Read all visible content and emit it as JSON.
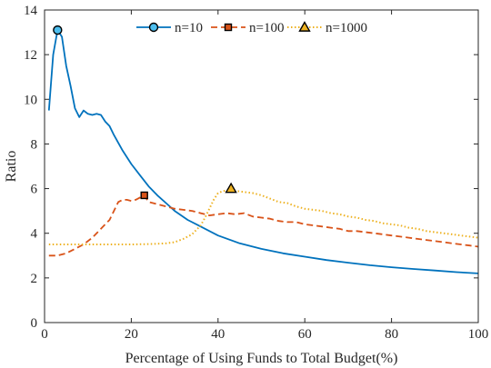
{
  "chart_data": {
    "type": "line",
    "title": "",
    "xlabel": "Percentage of Using Funds to Total Budget(%)",
    "ylabel": "Ratio",
    "xlim": [
      0,
      100
    ],
    "ylim": [
      0,
      14
    ],
    "xticks": [
      0,
      20,
      40,
      60,
      80,
      100
    ],
    "yticks": [
      0,
      2,
      4,
      6,
      8,
      10,
      12,
      14
    ],
    "legend_position": "top",
    "series": [
      {
        "name": "n=10",
        "color": "#0072BD",
        "line_style": "solid",
        "marker": "circle",
        "marker_fill": "#4DBEEE",
        "marker_at": [
          3,
          13.1
        ],
        "x": [
          1,
          2,
          3,
          4,
          5,
          6,
          7,
          8,
          9,
          10,
          11,
          12,
          13,
          14,
          15,
          16,
          18,
          20,
          22,
          24,
          26,
          28,
          30,
          33,
          36,
          40,
          45,
          50,
          55,
          60,
          65,
          70,
          75,
          80,
          85,
          90,
          95,
          100
        ],
        "y": [
          9.5,
          12.0,
          13.1,
          12.8,
          11.5,
          10.6,
          9.6,
          9.2,
          9.5,
          9.35,
          9.3,
          9.35,
          9.3,
          9.0,
          8.8,
          8.4,
          7.7,
          7.1,
          6.6,
          6.1,
          5.7,
          5.35,
          5.0,
          4.6,
          4.3,
          3.9,
          3.55,
          3.3,
          3.1,
          2.95,
          2.8,
          2.68,
          2.57,
          2.48,
          2.4,
          2.33,
          2.26,
          2.2
        ]
      },
      {
        "name": "n=100",
        "color": "#D95319",
        "line_style": "dashed",
        "marker": "square",
        "marker_fill": "#D95319",
        "marker_at": [
          23,
          5.7
        ],
        "x": [
          1,
          3,
          5,
          7,
          9,
          11,
          13,
          15,
          16,
          17,
          18,
          19,
          20,
          21,
          22,
          23,
          24,
          25,
          26,
          28,
          30,
          32,
          34,
          36,
          38,
          40,
          42,
          44,
          46,
          48,
          50,
          52,
          54,
          56,
          58,
          60,
          62,
          64,
          66,
          68,
          70,
          72,
          74,
          76,
          78,
          80,
          82,
          84,
          86,
          88,
          90,
          92,
          94,
          96,
          98,
          100
        ],
        "y": [
          3.0,
          3.0,
          3.1,
          3.3,
          3.5,
          3.8,
          4.2,
          4.6,
          5.0,
          5.4,
          5.5,
          5.5,
          5.45,
          5.5,
          5.6,
          5.7,
          5.4,
          5.35,
          5.3,
          5.2,
          5.1,
          5.05,
          5.0,
          4.9,
          4.8,
          4.85,
          4.9,
          4.85,
          4.9,
          4.75,
          4.7,
          4.65,
          4.55,
          4.5,
          4.5,
          4.4,
          4.35,
          4.3,
          4.25,
          4.2,
          4.1,
          4.1,
          4.05,
          4.0,
          3.95,
          3.9,
          3.85,
          3.8,
          3.75,
          3.7,
          3.65,
          3.6,
          3.55,
          3.5,
          3.45,
          3.4
        ]
      },
      {
        "name": "n=1000",
        "color": "#EDB120",
        "line_style": "dotted",
        "marker": "triangle",
        "marker_fill": "#EDB120",
        "marker_at": [
          43,
          6.0
        ],
        "x": [
          1,
          5,
          10,
          15,
          20,
          25,
          28,
          30,
          32,
          34,
          36,
          37,
          38,
          39,
          40,
          41,
          42,
          43,
          44,
          46,
          48,
          50,
          52,
          54,
          56,
          58,
          60,
          62,
          64,
          66,
          68,
          70,
          72,
          74,
          76,
          78,
          80,
          82,
          84,
          86,
          88,
          90,
          92,
          94,
          96,
          98,
          100
        ],
        "y": [
          3.5,
          3.5,
          3.5,
          3.5,
          3.5,
          3.52,
          3.55,
          3.6,
          3.75,
          3.95,
          4.35,
          4.7,
          5.1,
          5.5,
          5.8,
          5.88,
          5.92,
          5.95,
          5.9,
          5.85,
          5.8,
          5.7,
          5.55,
          5.4,
          5.35,
          5.2,
          5.1,
          5.05,
          5.0,
          4.9,
          4.85,
          4.75,
          4.7,
          4.6,
          4.55,
          4.45,
          4.4,
          4.35,
          4.25,
          4.2,
          4.1,
          4.05,
          4.0,
          3.95,
          3.9,
          3.85,
          3.8
        ]
      }
    ]
  }
}
